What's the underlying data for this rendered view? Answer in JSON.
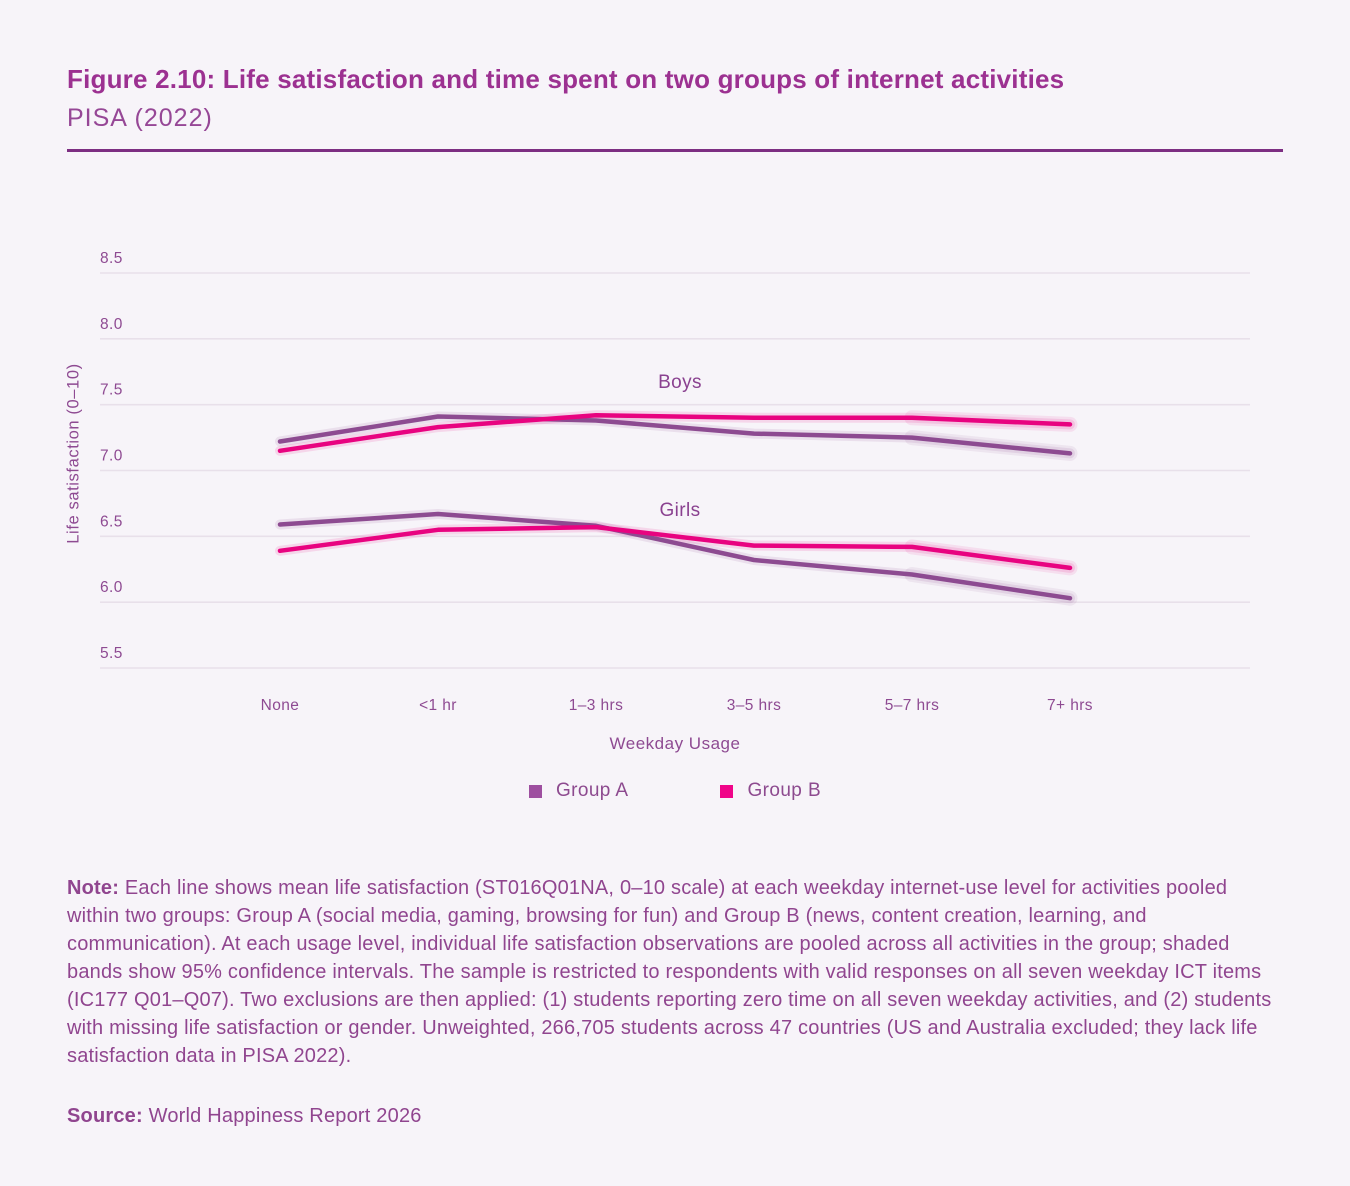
{
  "page": {
    "title": "Figure 2.10: Life satisfaction and time spent on two groups of internet activities",
    "subtitle": "PISA (2022)",
    "note_label": "Note:",
    "note_text": " Each line shows mean life satisfaction (ST016Q01NA, 0–10 scale) at each weekday internet-use level for activities pooled within two groups: Group A (social media, gaming, browsing for fun) and Group B (news, content creation, learning, and communication). At each usage level, individual life satisfaction observations are pooled across all activities in the group; shaded bands show 95% confidence intervals. The sample is restricted to respondents with valid responses on all seven weekday ICT items (IC177 Q01–Q07). Two exclusions are then applied: (1) students reporting zero time on all seven weekday activities, and (2) students with missing life satisfaction or gender. Unweighted, 266,705 students across 47 countries (US and Australia excluded; they lack life satisfaction data in PISA 2022).",
    "source_label": "Source:",
    "source_text": " World Happiness Report 2026"
  },
  "chart_data": {
    "type": "line",
    "title": "Figure 2.10: Life satisfaction and time spent on two groups of internet activities",
    "subtitle": "PISA (2022)",
    "xlabel": "Weekday Usage",
    "ylabel": "Life satisfaction (0–10)",
    "x_categories": [
      "None",
      "<1 hr",
      "1–3 hrs",
      "3–5 hrs",
      "5–7 hrs",
      "7+ hrs"
    ],
    "yticks": [
      "8.5",
      "8.0",
      "7.5",
      "7.0",
      "6.5",
      "6.0",
      "5.5"
    ],
    "ylim": [
      5.5,
      8.5
    ],
    "grid": "horizontal",
    "legend_position": "bottom",
    "ci_bands": "shaded bands show 95% confidence intervals",
    "panel_annotations": [
      {
        "text": "Boys"
      },
      {
        "text": "Girls"
      }
    ],
    "series": [
      {
        "name": "Boys - Group A",
        "panel": "Boys",
        "legend": "Group A",
        "color": "#8d4b91",
        "values": [
          7.22,
          7.41,
          7.38,
          7.28,
          7.25,
          7.13
        ]
      },
      {
        "name": "Boys - Group B",
        "panel": "Boys",
        "legend": "Group B",
        "color": "#e80380",
        "values": [
          7.15,
          7.33,
          7.42,
          7.4,
          7.4,
          7.35
        ]
      },
      {
        "name": "Girls - Group A",
        "panel": "Girls",
        "legend": "Group A",
        "color": "#8d4b91",
        "values": [
          6.59,
          6.67,
          6.58,
          6.32,
          6.21,
          6.03
        ]
      },
      {
        "name": "Girls - Group B",
        "panel": "Girls",
        "legend": "Group B",
        "color": "#e80380",
        "values": [
          6.39,
          6.55,
          6.57,
          6.43,
          6.42,
          6.26
        ]
      }
    ],
    "legend": [
      {
        "label": "Group A",
        "color": "#9e4fa0"
      },
      {
        "label": "Group B",
        "color": "#f00489"
      }
    ]
  }
}
